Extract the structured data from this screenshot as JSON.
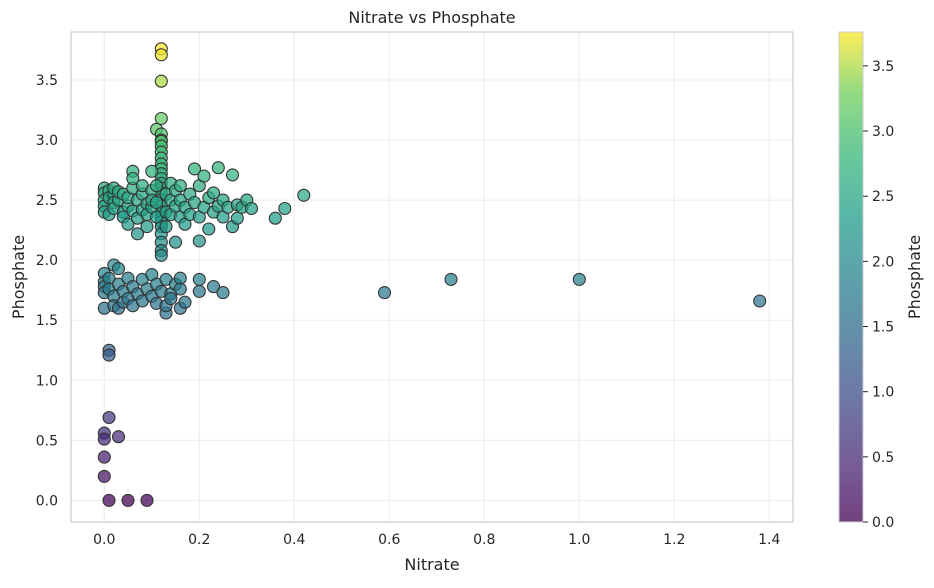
{
  "chart_data": {
    "type": "scatter",
    "title": "Nitrate vs Phosphate",
    "xlabel": "Nitrate",
    "ylabel": "Phosphate",
    "xlim": [
      -0.07,
      1.45
    ],
    "ylim": [
      -0.18,
      3.9
    ],
    "xticks": [
      0.0,
      0.2,
      0.4,
      0.6,
      0.8,
      1.0,
      1.2,
      1.4
    ],
    "yticks": [
      0.0,
      0.5,
      1.0,
      1.5,
      2.0,
      2.5,
      3.0,
      3.5
    ],
    "grid": true,
    "colormap": "viridis",
    "colorbar": {
      "label": "Phosphate",
      "range": [
        0.0,
        3.76
      ],
      "ticks": [
        0.0,
        0.5,
        1.0,
        1.5,
        2.0,
        2.5,
        3.0,
        3.5
      ]
    },
    "colors": {
      "edge": "#333333",
      "grid": "#ebebeb",
      "axes_border": "#cccccc"
    },
    "points": [
      [
        0.12,
        3.76
      ],
      [
        0.12,
        3.71
      ],
      [
        0.12,
        3.49
      ],
      [
        0.12,
        3.18
      ],
      [
        0.11,
        3.09
      ],
      [
        0.12,
        3.05
      ],
      [
        0.12,
        3.0
      ],
      [
        0.12,
        2.99
      ],
      [
        0.12,
        2.95
      ],
      [
        0.12,
        2.9
      ],
      [
        0.12,
        2.85
      ],
      [
        0.12,
        2.8
      ],
      [
        0.12,
        2.76
      ],
      [
        0.12,
        2.72
      ],
      [
        0.12,
        2.68
      ],
      [
        0.12,
        2.64
      ],
      [
        0.12,
        2.6
      ],
      [
        0.12,
        2.56
      ],
      [
        0.12,
        2.5
      ],
      [
        0.12,
        2.45
      ],
      [
        0.12,
        2.4
      ],
      [
        0.12,
        2.36
      ],
      [
        0.12,
        2.32
      ],
      [
        0.12,
        2.28
      ],
      [
        0.12,
        2.22
      ],
      [
        0.12,
        2.15
      ],
      [
        0.12,
        2.08
      ],
      [
        0.12,
        2.04
      ],
      [
        0.0,
        2.6
      ],
      [
        0.0,
        2.56
      ],
      [
        0.0,
        2.5
      ],
      [
        0.0,
        2.45
      ],
      [
        0.0,
        2.4
      ],
      [
        0.01,
        2.38
      ],
      [
        0.01,
        2.58
      ],
      [
        0.01,
        2.52
      ],
      [
        0.02,
        2.55
      ],
      [
        0.02,
        2.48
      ],
      [
        0.02,
        2.6
      ],
      [
        0.02,
        2.43
      ],
      [
        0.03,
        2.5
      ],
      [
        0.03,
        2.57
      ],
      [
        0.04,
        2.4
      ],
      [
        0.04,
        2.36
      ],
      [
        0.04,
        2.55
      ],
      [
        0.05,
        2.45
      ],
      [
        0.05,
        2.52
      ],
      [
        0.05,
        2.3
      ],
      [
        0.06,
        2.6
      ],
      [
        0.06,
        2.41
      ],
      [
        0.06,
        2.74
      ],
      [
        0.06,
        2.68
      ],
      [
        0.07,
        2.5
      ],
      [
        0.07,
        2.35
      ],
      [
        0.07,
        2.22
      ],
      [
        0.08,
        2.55
      ],
      [
        0.08,
        2.42
      ],
      [
        0.08,
        2.62
      ],
      [
        0.09,
        2.47
      ],
      [
        0.09,
        2.38
      ],
      [
        0.09,
        2.28
      ],
      [
        0.1,
        2.58
      ],
      [
        0.1,
        2.44
      ],
      [
        0.1,
        2.5
      ],
      [
        0.1,
        2.74
      ],
      [
        0.11,
        2.36
      ],
      [
        0.11,
        2.48
      ],
      [
        0.11,
        2.62
      ],
      [
        0.13,
        2.4
      ],
      [
        0.13,
        2.55
      ],
      [
        0.13,
        2.28
      ],
      [
        0.14,
        2.5
      ],
      [
        0.14,
        2.38
      ],
      [
        0.14,
        2.64
      ],
      [
        0.15,
        2.15
      ],
      [
        0.15,
        2.45
      ],
      [
        0.15,
        2.58
      ],
      [
        0.16,
        2.36
      ],
      [
        0.16,
        2.5
      ],
      [
        0.16,
        2.62
      ],
      [
        0.17,
        2.3
      ],
      [
        0.17,
        2.44
      ],
      [
        0.18,
        2.55
      ],
      [
        0.18,
        2.38
      ],
      [
        0.19,
        2.76
      ],
      [
        0.19,
        2.48
      ],
      [
        0.2,
        2.36
      ],
      [
        0.2,
        2.62
      ],
      [
        0.2,
        2.16
      ],
      [
        0.21,
        2.7
      ],
      [
        0.21,
        2.44
      ],
      [
        0.22,
        2.52
      ],
      [
        0.22,
        2.26
      ],
      [
        0.23,
        2.4
      ],
      [
        0.23,
        2.56
      ],
      [
        0.24,
        2.77
      ],
      [
        0.24,
        2.45
      ],
      [
        0.25,
        2.5
      ],
      [
        0.25,
        2.36
      ],
      [
        0.26,
        2.44
      ],
      [
        0.27,
        2.28
      ],
      [
        0.27,
        2.71
      ],
      [
        0.28,
        2.35
      ],
      [
        0.28,
        2.46
      ],
      [
        0.29,
        2.44
      ],
      [
        0.3,
        2.5
      ],
      [
        0.31,
        2.43
      ],
      [
        0.36,
        2.35
      ],
      [
        0.38,
        2.43
      ],
      [
        0.42,
        2.54
      ],
      [
        0.0,
        1.89
      ],
      [
        0.0,
        1.82
      ],
      [
        0.0,
        1.78
      ],
      [
        0.0,
        1.73
      ],
      [
        0.0,
        1.6
      ],
      [
        0.01,
        1.85
      ],
      [
        0.01,
        1.76
      ],
      [
        0.02,
        1.96
      ],
      [
        0.02,
        1.7
      ],
      [
        0.02,
        1.62
      ],
      [
        0.03,
        1.93
      ],
      [
        0.03,
        1.8
      ],
      [
        0.03,
        1.6
      ],
      [
        0.04,
        1.65
      ],
      [
        0.04,
        1.74
      ],
      [
        0.05,
        1.85
      ],
      [
        0.05,
        1.68
      ],
      [
        0.06,
        1.78
      ],
      [
        0.06,
        1.62
      ],
      [
        0.07,
        1.72
      ],
      [
        0.08,
        1.84
      ],
      [
        0.08,
        1.66
      ],
      [
        0.09,
        1.76
      ],
      [
        0.1,
        1.88
      ],
      [
        0.1,
        1.7
      ],
      [
        0.11,
        1.8
      ],
      [
        0.11,
        1.64
      ],
      [
        0.12,
        1.74
      ],
      [
        0.13,
        1.84
      ],
      [
        0.13,
        1.56
      ],
      [
        0.13,
        1.62
      ],
      [
        0.14,
        1.72
      ],
      [
        0.14,
        1.68
      ],
      [
        0.15,
        1.8
      ],
      [
        0.16,
        1.85
      ],
      [
        0.16,
        1.6
      ],
      [
        0.16,
        1.76
      ],
      [
        0.17,
        1.65
      ],
      [
        0.2,
        1.84
      ],
      [
        0.2,
        1.74
      ],
      [
        0.23,
        1.78
      ],
      [
        0.25,
        1.73
      ],
      [
        0.59,
        1.73
      ],
      [
        0.73,
        1.84
      ],
      [
        1.0,
        1.84
      ],
      [
        1.38,
        1.66
      ],
      [
        0.01,
        1.25
      ],
      [
        0.01,
        1.21
      ],
      [
        0.01,
        0.69
      ],
      [
        0.0,
        0.56
      ],
      [
        0.0,
        0.51
      ],
      [
        0.03,
        0.53
      ],
      [
        0.0,
        0.36
      ],
      [
        0.0,
        0.2
      ],
      [
        0.01,
        0.0
      ],
      [
        0.05,
        0.0
      ],
      [
        0.09,
        0.0
      ]
    ]
  }
}
